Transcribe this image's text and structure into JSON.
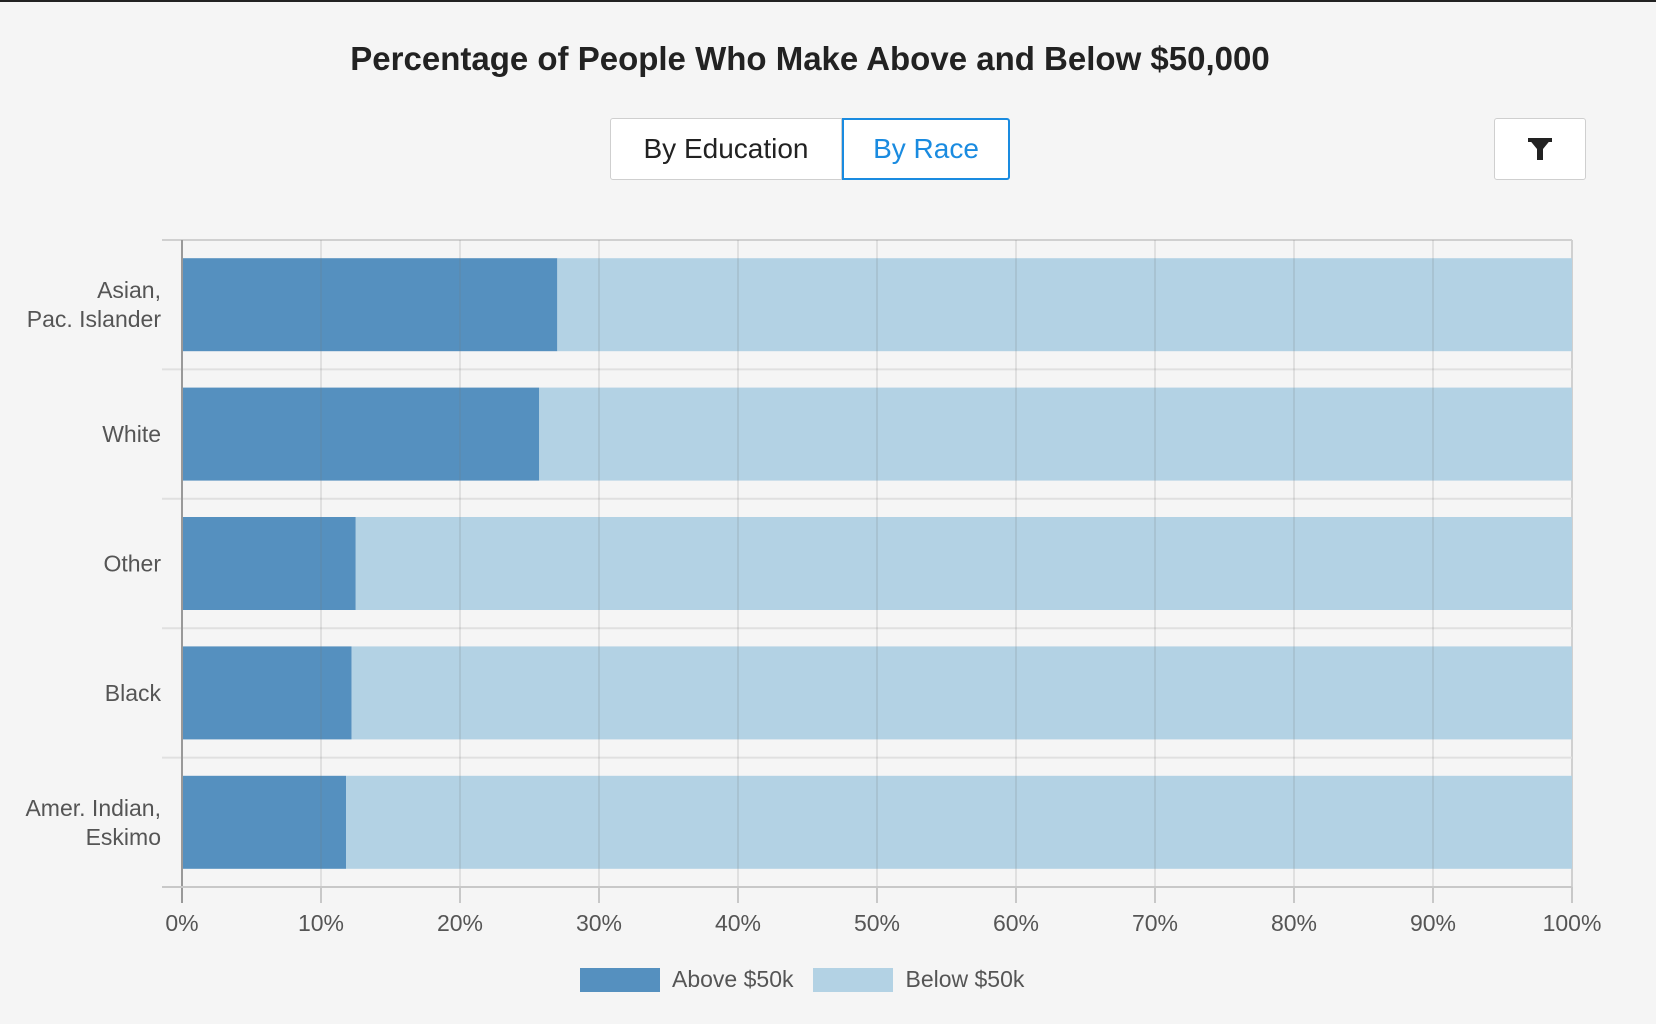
{
  "title": "Percentage of People Who Make Above and Below $50,000",
  "toggle": {
    "education_label": "By Education",
    "race_label": "By Race",
    "active": "By Race"
  },
  "filter": {
    "icon": "filter-icon"
  },
  "colors": {
    "above": "#5590bf",
    "below": "#b3d2e4",
    "accent": "#1a8be0"
  },
  "chart_data": {
    "type": "bar",
    "orientation": "horizontal",
    "stacked": true,
    "normalized": true,
    "categories": [
      [
        "Asian,",
        "Pac. Islander"
      ],
      [
        "White"
      ],
      [
        "Other"
      ],
      [
        "Black"
      ],
      [
        "Amer. Indian,",
        "Eskimo"
      ]
    ],
    "series": [
      {
        "name": "Above $50k",
        "values": [
          27,
          25.7,
          12.5,
          12.2,
          11.8
        ]
      },
      {
        "name": "Below $50k",
        "values": [
          73,
          74.3,
          87.5,
          87.8,
          88.2
        ]
      }
    ],
    "xticks": [
      "0%",
      "10%",
      "20%",
      "30%",
      "40%",
      "50%",
      "60%",
      "70%",
      "80%",
      "90%",
      "100%"
    ],
    "xlim": [
      0,
      100
    ],
    "grid": true,
    "legend": "bottom",
    "xlabel": "",
    "ylabel": ""
  }
}
